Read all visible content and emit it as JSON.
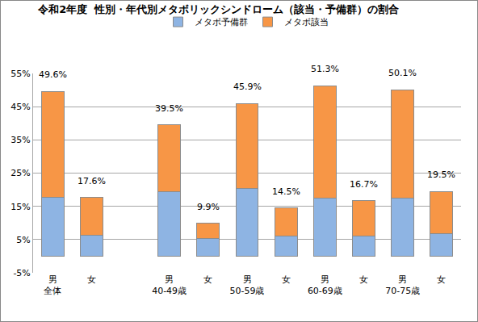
{
  "chart_data": {
    "type": "bar",
    "title": "令和2年度  性別・年代別メタボリックシンドローム（該当・予備群）の割合",
    "categories": [
      "男\n全体",
      "女",
      null,
      "男\n40-49歳",
      "女",
      "男\n50-59歳",
      "女",
      "男\n60-69歳",
      "女",
      "男\n70-75歳",
      "女"
    ],
    "series": [
      {
        "name": "メタボ予備群",
        "color": "#8eb4e3",
        "values": [
          17.6,
          6.3,
          null,
          19.4,
          5.4,
          20.3,
          6.1,
          17.4,
          6.1,
          17.4,
          6.8
        ]
      },
      {
        "name": "メタボ該当",
        "color": "#f79646",
        "values": [
          32.0,
          11.3,
          null,
          20.1,
          4.5,
          25.6,
          8.4,
          33.9,
          10.6,
          32.7,
          12.7
        ]
      }
    ],
    "totals": {
      "values": [
        49.6,
        17.6,
        null,
        39.5,
        9.9,
        45.9,
        14.5,
        51.3,
        16.7,
        50.1,
        19.5
      ],
      "value_labels": [
        "49.6%",
        "17.6%",
        null,
        "39.5%",
        "9.9%",
        "45.9%",
        "14.5%",
        "51.3%",
        "16.7%",
        "50.1%",
        "19.5%"
      ]
    },
    "stacked": true,
    "ylim": [
      -5,
      55
    ],
    "yticks": [
      {
        "value": -5,
        "label": "-5%"
      },
      {
        "value": 5,
        "label": "5%"
      },
      {
        "value": 15,
        "label": "15%"
      },
      {
        "value": 25,
        "label": "25%"
      },
      {
        "value": 35,
        "label": "35%"
      },
      {
        "value": 45,
        "label": "45%"
      },
      {
        "value": 55,
        "label": "55%"
      }
    ],
    "grid": true,
    "legend": "top",
    "data_labels": false
  }
}
